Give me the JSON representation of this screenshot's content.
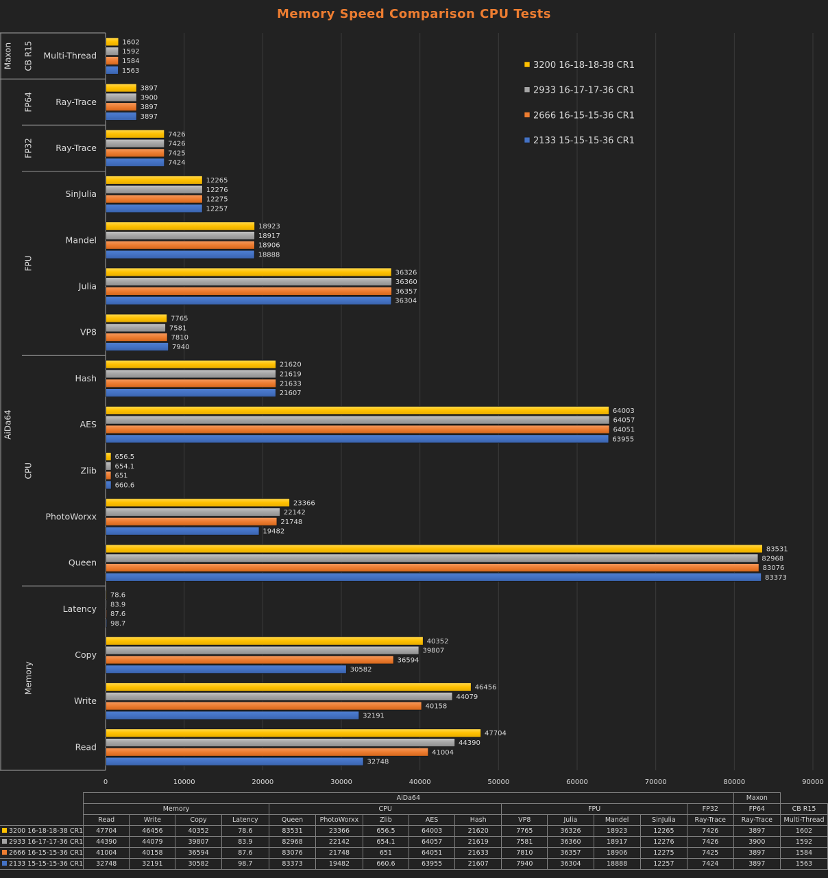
{
  "chart_data": {
    "type": "bar",
    "orientation": "horizontal",
    "title": "Memory Speed Comparison CPU Tests",
    "xlabel": "",
    "ylabel": "",
    "xlim": [
      0,
      90000
    ],
    "x_ticks": [
      0,
      10000,
      20000,
      30000,
      40000,
      50000,
      60000,
      70000,
      80000,
      90000
    ],
    "grid": true,
    "legend_position": "top-right",
    "categories": [
      {
        "group": "Maxon",
        "subgroup": "CB R15",
        "name": "Multi-Thread"
      },
      {
        "group": "AiDa64",
        "subgroup": "FP64",
        "name": "Ray-Trace"
      },
      {
        "group": "AiDa64",
        "subgroup": "FP32",
        "name": "Ray-Trace"
      },
      {
        "group": "AiDa64",
        "subgroup": "FPU",
        "name": "SinJulia"
      },
      {
        "group": "AiDa64",
        "subgroup": "FPU",
        "name": "Mandel"
      },
      {
        "group": "AiDa64",
        "subgroup": "FPU",
        "name": "Julia"
      },
      {
        "group": "AiDa64",
        "subgroup": "FPU",
        "name": "VP8"
      },
      {
        "group": "AiDa64",
        "subgroup": "CPU",
        "name": "Hash"
      },
      {
        "group": "AiDa64",
        "subgroup": "CPU",
        "name": "AES"
      },
      {
        "group": "AiDa64",
        "subgroup": "CPU",
        "name": "Zlib"
      },
      {
        "group": "AiDa64",
        "subgroup": "CPU",
        "name": "PhotoWorxx"
      },
      {
        "group": "AiDa64",
        "subgroup": "CPU",
        "name": "Queen"
      },
      {
        "group": "AiDa64",
        "subgroup": "Memory",
        "name": "Latency"
      },
      {
        "group": "AiDa64",
        "subgroup": "Memory",
        "name": "Copy"
      },
      {
        "group": "AiDa64",
        "subgroup": "Memory",
        "name": "Write"
      },
      {
        "group": "AiDa64",
        "subgroup": "Memory",
        "name": "Read"
      }
    ],
    "series": [
      {
        "name": "3200 16-18-18-38 CR1",
        "color": "#ffc000",
        "values": [
          "1602",
          "3897",
          "7426",
          "12265",
          "18923",
          "36326",
          "7765",
          "21620",
          "64003",
          "656.5",
          "23366",
          "83531",
          "78.6",
          "40352",
          "46456",
          "47704"
        ]
      },
      {
        "name": "2933 16-17-17-36 CR1",
        "color": "#a5a5a5",
        "values": [
          "1592",
          "3900",
          "7426",
          "12276",
          "18917",
          "36360",
          "7581",
          "21619",
          "64057",
          "654.1",
          "22142",
          "82968",
          "83.9",
          "39807",
          "44079",
          "44390"
        ]
      },
      {
        "name": "2666 16-15-15-36 CR1",
        "color": "#ed7d31",
        "values": [
          "1584",
          "3897",
          "7425",
          "12275",
          "18906",
          "36357",
          "7810",
          "21633",
          "64051",
          "651",
          "21748",
          "83076",
          "87.6",
          "36594",
          "40158",
          "41004"
        ]
      },
      {
        "name": "2133 15-15-15-36 CR1",
        "color": "#4472c4",
        "values": [
          "1563",
          "3897",
          "7424",
          "12257",
          "18888",
          "36304",
          "7940",
          "21607",
          "63955",
          "660.6",
          "19482",
          "83373",
          "98.7",
          "30582",
          "32191",
          "32748"
        ]
      }
    ]
  },
  "table": {
    "top_headers": [
      {
        "label": "AiDa64",
        "span": 14
      },
      {
        "label": "Maxon",
        "span": 1
      }
    ],
    "mid_headers": [
      {
        "label": "Memory",
        "span": 4
      },
      {
        "label": "CPU",
        "span": 5
      },
      {
        "label": "FPU",
        "span": 4
      },
      {
        "label": "FP32",
        "span": 1
      },
      {
        "label": "FP64",
        "span": 1
      },
      {
        "label": "CB R15",
        "span": 1
      }
    ],
    "columns": [
      "Read",
      "Write",
      "Copy",
      "Latency",
      "Queen",
      "PhotoWorxx",
      "Zlib",
      "AES",
      "Hash",
      "VP8",
      "Julia",
      "Mandel",
      "SinJulia",
      "Ray-Trace",
      "Ray-Trace",
      "Multi-Thread"
    ],
    "rows": [
      {
        "series": "3200 16-18-18-38 CR1",
        "color": "#ffc000",
        "values": [
          "47704",
          "46456",
          "40352",
          "78.6",
          "83531",
          "23366",
          "656.5",
          "64003",
          "21620",
          "7765",
          "36326",
          "18923",
          "12265",
          "7426",
          "3897",
          "1602"
        ]
      },
      {
        "series": "2933 16-17-17-36 CR1",
        "color": "#a5a5a5",
        "values": [
          "44390",
          "44079",
          "39807",
          "83.9",
          "82968",
          "22142",
          "654.1",
          "64057",
          "21619",
          "7581",
          "36360",
          "18917",
          "12276",
          "7426",
          "3900",
          "1592"
        ]
      },
      {
        "series": "2666 16-15-15-36 CR1",
        "color": "#ed7d31",
        "values": [
          "41004",
          "40158",
          "36594",
          "87.6",
          "83076",
          "21748",
          "651",
          "64051",
          "21633",
          "7810",
          "36357",
          "18906",
          "12275",
          "7425",
          "3897",
          "1584"
        ]
      },
      {
        "series": "2133 15-15-15-36 CR1",
        "color": "#4472c4",
        "values": [
          "32748",
          "32191",
          "30582",
          "98.7",
          "83373",
          "19482",
          "660.6",
          "63955",
          "21607",
          "7940",
          "36304",
          "18888",
          "12257",
          "7424",
          "3897",
          "1563"
        ]
      }
    ]
  }
}
